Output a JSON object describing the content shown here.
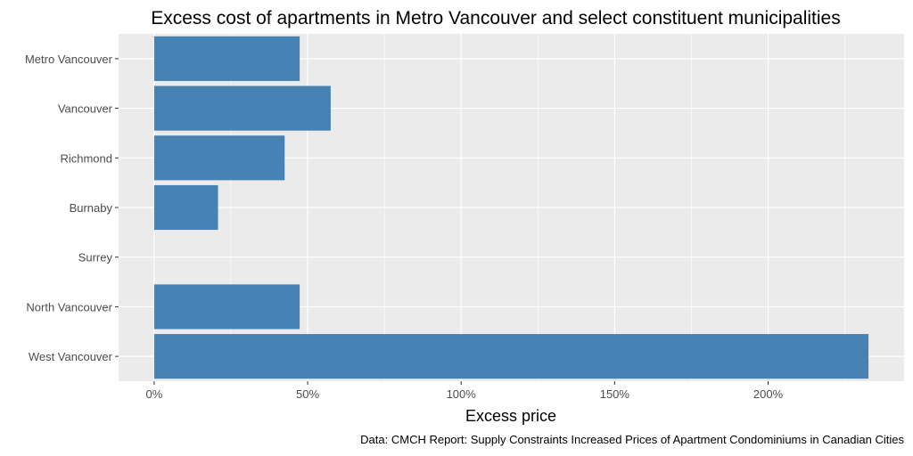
{
  "chart_data": {
    "type": "bar",
    "orientation": "horizontal",
    "title": "Excess cost of apartments in Metro Vancouver and select constituent municipalities",
    "xlabel": "Excess price",
    "ylabel": "",
    "caption": "Data: CMCH Report: Supply Constraints Increased Prices of Apartment Condominiums in Canadian Cities",
    "categories": [
      "Metro Vancouver",
      "Vancouver",
      "Richmond",
      "Burnaby",
      "Surrey",
      "North Vancouver",
      "West Vancouver"
    ],
    "values": [
      47.4,
      57.5,
      42.5,
      20.8,
      0,
      47.4,
      232.7
    ],
    "unit": "%",
    "xticks": [
      0,
      50,
      100,
      150,
      200
    ],
    "xtick_labels": [
      "0%",
      "50%",
      "100%",
      "150%",
      "200%"
    ],
    "xlim": [
      -11.6,
      244.3
    ],
    "grid": true,
    "bar_color": "#4682B4",
    "panel_color": "#EBEBEB"
  }
}
